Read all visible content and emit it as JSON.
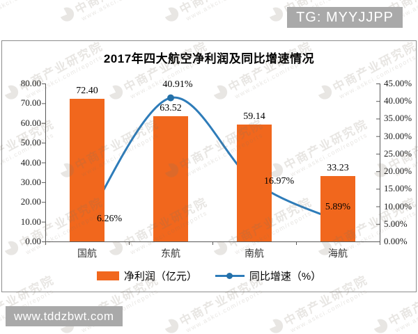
{
  "page": {
    "badges": {
      "top_right": "TG: MYYJJPP",
      "bottom_left": "www.tddzbwt.com"
    },
    "watermark": {
      "text": "中商产业研究院",
      "subtext": "www.askci.com/reports",
      "logo": "zhongshang-circle-logo"
    }
  },
  "chart_data": {
    "type": "combo-bar-line",
    "title": "2017年四大航空净利润及同比增速情况",
    "categories": [
      "国航",
      "东航",
      "南航",
      "海航"
    ],
    "series": [
      {
        "name": "净利润（亿元）",
        "type": "bar",
        "axis": "left",
        "color": "#F1671D",
        "values": [
          72.4,
          63.52,
          59.14,
          33.23
        ],
        "labels": [
          "72.40",
          "63.52",
          "59.14",
          "33.23"
        ]
      },
      {
        "name": "同比增速（%）",
        "type": "line",
        "axis": "right",
        "color": "#2E7CB9",
        "marker_color": "#2470A8",
        "values": [
          6.26,
          40.91,
          16.97,
          5.89
        ],
        "labels": [
          "6.26%",
          "40.91%",
          "16.97%",
          "5.89%"
        ]
      }
    ],
    "left_axis": {
      "min": 0,
      "max": 80,
      "step": 10,
      "ticks": [
        "0.00",
        "10.00",
        "20.00",
        "30.00",
        "40.00",
        "50.00",
        "60.00",
        "70.00",
        "80.00"
      ]
    },
    "right_axis": {
      "min": 0,
      "max": 45,
      "step": 5,
      "ticks": [
        "0.00%",
        "5.00%",
        "10.00%",
        "15.00%",
        "20.00%",
        "25.00%",
        "30.00%",
        "35.00%",
        "40.00%",
        "45.00%"
      ]
    },
    "grid": false,
    "legend_position": "bottom",
    "axis_color": "#595959"
  }
}
